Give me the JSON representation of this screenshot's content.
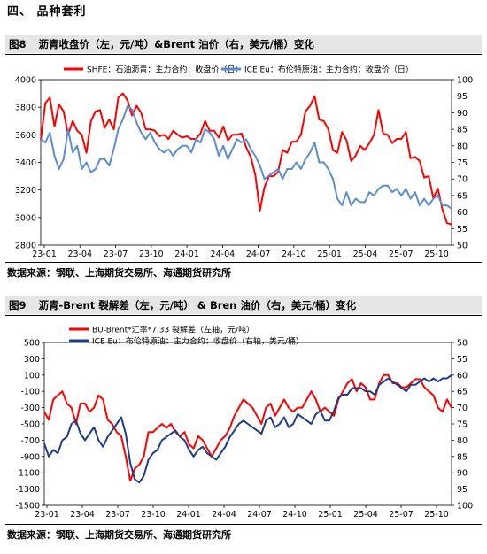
{
  "section_title": "四、 品种套利",
  "figure8": {
    "label": "图8",
    "title": "沥青收盘价（左，元/吨）&Brent 油价（右，美元/桶）变化",
    "source": "数据来源：钢联、上海期货交易所、海通期货研究所"
  },
  "figure9": {
    "label": "图9",
    "title": "沥青-Brent 裂解差（左，元/吨） & Bren 油价（右，美元/桶）变化",
    "source": "数据来源：钢联、上海期货交易所、海通期货研究所"
  },
  "chart_data": [
    {
      "type": "line",
      "x_ticks": [
        "23-01",
        "23-04",
        "23-07",
        "23-10",
        "24-01",
        "24-04",
        "24-07",
        "24-10",
        "25-01",
        "25-04",
        "25-07",
        "25-10"
      ],
      "ylim": [
        2800,
        4000
      ],
      "y_ticks": [
        2800,
        3000,
        3200,
        3400,
        3600,
        3800,
        4000
      ],
      "y2lim": [
        50,
        100
      ],
      "y2_ticks": [
        50,
        55,
        60,
        65,
        70,
        75,
        80,
        85,
        90,
        95,
        100
      ],
      "legend": "top",
      "grid": false,
      "series": [
        {
          "name": "SHFE：石油沥青：主力合约：收盘价（日）",
          "axis": "left",
          "color": "#ff0000",
          "values": [
            3560,
            3830,
            3870,
            3660,
            3820,
            3770,
            3600,
            3700,
            3630,
            3600,
            3470,
            3700,
            3770,
            3780,
            3650,
            3710,
            3640,
            3870,
            3900,
            3850,
            3740,
            3810,
            3760,
            3640,
            3640,
            3630,
            3590,
            3600,
            3570,
            3630,
            3600,
            3580,
            3590,
            3570,
            3570,
            3610,
            3700,
            3630,
            3630,
            3580,
            3660,
            3560,
            3600,
            3600,
            3610,
            3510,
            3440,
            3310,
            3050,
            3220,
            3300,
            3300,
            3330,
            3490,
            3470,
            3550,
            3550,
            3600,
            3770,
            3810,
            3880,
            3710,
            3700,
            3640,
            3490,
            3470,
            3620,
            3560,
            3410,
            3450,
            3520,
            3490,
            3540,
            3600,
            3780,
            3610,
            3600,
            3540,
            3570,
            3570,
            3620,
            3430,
            3440,
            3410,
            3290,
            3300,
            3140,
            3210,
            3060,
            2960,
            2950
          ]
        },
        {
          "name": "ICE Eu：布伦特原油：主力合约：收盘价（日）",
          "axis": "right",
          "color": "#5b8ed0",
          "values": [
            82,
            81,
            84,
            77,
            73,
            76,
            85,
            78,
            80,
            73,
            75,
            72,
            73,
            76,
            76,
            74,
            79,
            85,
            88,
            92,
            91,
            87,
            84,
            82,
            84,
            81,
            79,
            78,
            79,
            77,
            79,
            80,
            80,
            78,
            82,
            81,
            85,
            84,
            82,
            77,
            80,
            76,
            79,
            82,
            81,
            82,
            79,
            77,
            74,
            70,
            71,
            72,
            73,
            70,
            73,
            73,
            75,
            73,
            76,
            78,
            81,
            75,
            75,
            73,
            70,
            64,
            62,
            66,
            62,
            64,
            63,
            63,
            66,
            65,
            67,
            68,
            68,
            66,
            67,
            65,
            67,
            64,
            66,
            62,
            64,
            62,
            64,
            65,
            62,
            62,
            61
          ]
        }
      ]
    },
    {
      "type": "line",
      "x_ticks": [
        "23-01",
        "23-04",
        "23-07",
        "23-10",
        "24-01",
        "24-04",
        "24-07",
        "24-10",
        "25-01",
        "25-04",
        "25-07",
        "25-10"
      ],
      "ylim": [
        -1500,
        500
      ],
      "y_ticks": [
        500,
        300,
        100,
        -100,
        -300,
        -500,
        -700,
        -900,
        -1100,
        -1300,
        -1500
      ],
      "y2lim": [
        100,
        50
      ],
      "y2_ticks": [
        50,
        55,
        60,
        65,
        70,
        75,
        80,
        85,
        90,
        95,
        100
      ],
      "y2_inverted": true,
      "legend": "top",
      "grid": false,
      "series": [
        {
          "name": "BU-Brent*汇率*7.33 裂解差（左轴，元/吨）",
          "axis": "left",
          "color": "#ff0000",
          "values": [
            -350,
            -450,
            -200,
            -150,
            -100,
            -250,
            -300,
            -500,
            -250,
            -250,
            -350,
            -300,
            -150,
            -200,
            -450,
            -500,
            -600,
            -650,
            -900,
            -1200,
            -1050,
            -1000,
            -900,
            -600,
            -600,
            -550,
            -500,
            -550,
            -500,
            -600,
            -650,
            -600,
            -750,
            -800,
            -650,
            -700,
            -800,
            -900,
            -800,
            -700,
            -650,
            -550,
            -400,
            -300,
            -200,
            -250,
            -300,
            -400,
            -500,
            -300,
            -250,
            -400,
            -300,
            -200,
            -300,
            -350,
            -300,
            -300,
            -200,
            -100,
            -200,
            -350,
            -300,
            -350,
            -400,
            -200,
            -100,
            0,
            50,
            -100,
            0,
            -50,
            -200,
            -200,
            0,
            100,
            100,
            0,
            0,
            -50,
            -50,
            0,
            50,
            50,
            -50,
            -100,
            -150,
            -300,
            -350,
            -200,
            -300
          ]
        },
        {
          "name": "ICE Eu：布伦特原油：主力合约：收盘价（右轴，美元/桶）",
          "axis": "right",
          "color": "#1f3c88",
          "values": [
            81,
            85,
            83,
            84,
            80,
            79,
            75,
            74,
            78,
            80,
            78,
            76,
            80,
            82,
            79,
            77,
            75,
            73,
            78,
            87,
            92,
            93,
            91,
            86,
            84,
            83,
            80,
            79,
            78,
            77,
            79,
            80,
            83,
            85,
            83,
            82,
            84,
            85,
            86,
            84,
            82,
            79,
            77,
            75,
            74,
            75,
            76,
            77,
            78,
            74,
            73,
            76,
            75,
            73,
            76,
            75,
            72,
            73,
            74,
            75,
            72,
            71,
            74,
            74,
            71,
            67,
            66,
            66,
            64,
            64,
            64,
            65,
            65,
            66,
            63,
            62,
            61,
            62,
            63,
            64,
            65,
            63,
            63,
            62,
            61,
            62,
            61,
            62,
            61,
            61,
            60
          ]
        }
      ]
    }
  ]
}
